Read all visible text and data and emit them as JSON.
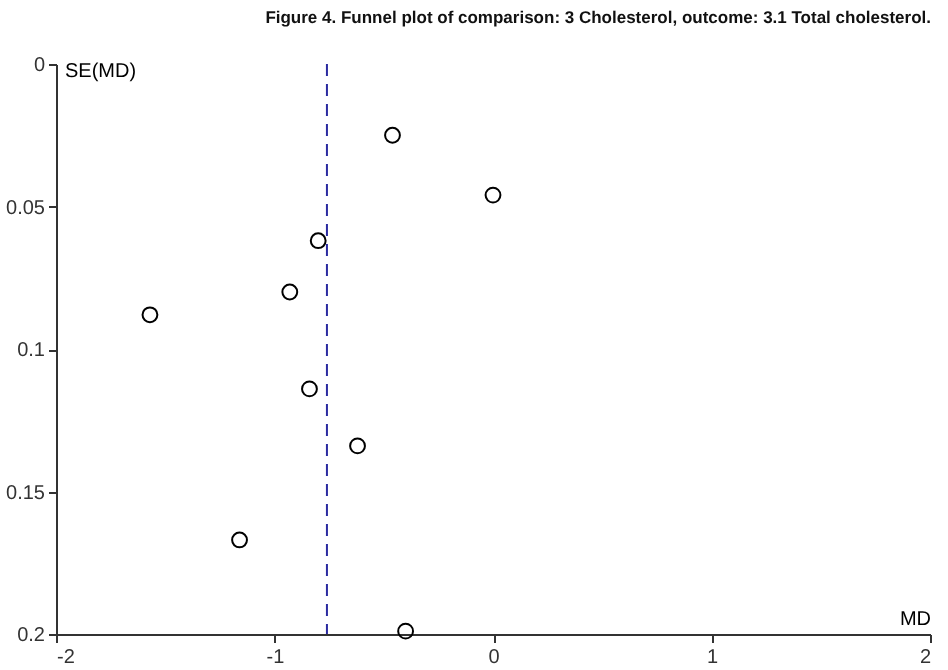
{
  "chart_data": {
    "type": "scatter",
    "title": "Figure 4.   Funnel plot of comparison: 3 Cholesterol, outcome: 3.1 Total cholesterol.",
    "xlabel": "MD",
    "ylabel": "SE(MD)",
    "x": [
      -0.46,
      0.0,
      -0.8,
      -0.93,
      -1.57,
      -0.84,
      -0.62,
      -1.16,
      -0.4
    ],
    "series": [
      {
        "color": "#000000",
        "values": [
          0.025,
          0.046,
          0.062,
          0.08,
          0.088,
          0.114,
          0.134,
          0.167,
          0.199
        ]
      }
    ],
    "xlim": [
      -2,
      2
    ],
    "xticks": [
      -2,
      -1,
      0,
      1,
      2
    ],
    "ylim": [
      0.2,
      0
    ],
    "yticks": [
      0,
      0.05,
      0.1,
      0.15,
      0.2
    ],
    "ref_lines": [
      {
        "axis": "x",
        "value": -0.76,
        "color": "#2a2aa0",
        "line_style": "dashed"
      }
    ],
    "marker": "circle",
    "grid": false
  }
}
